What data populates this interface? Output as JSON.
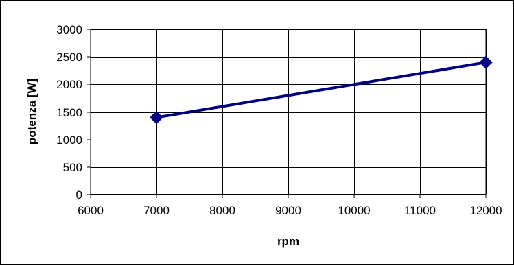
{
  "chart_data": {
    "type": "line",
    "title": "",
    "xlabel": "rpm",
    "ylabel": "potenza [W]",
    "xlim": [
      6000,
      12000
    ],
    "ylim": [
      0,
      3000
    ],
    "x_ticks": [
      6000,
      7000,
      8000,
      9000,
      10000,
      11000,
      12000
    ],
    "y_ticks": [
      0,
      500,
      1000,
      1500,
      2000,
      2500,
      3000
    ],
    "grid": true,
    "legend": "none",
    "series": [
      {
        "x": [
          7000,
          12000
        ],
        "y": [
          1400,
          2400
        ],
        "color": "#000080",
        "marker": "diamond"
      }
    ]
  }
}
